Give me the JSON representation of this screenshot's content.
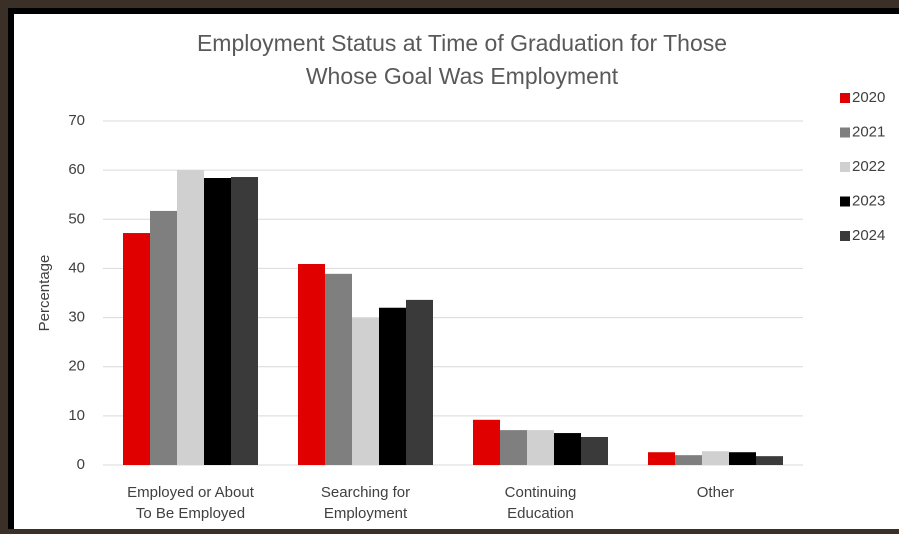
{
  "chart_data": {
    "type": "bar",
    "title": [
      "Employment Status at Time of Graduation for Those",
      "Whose Goal Was Employment"
    ],
    "y_label": "Percentage",
    "categories": [
      [
        "Employed or About",
        "To Be Employed"
      ],
      [
        "Searching for",
        "Employment"
      ],
      [
        "Continuing",
        "Education"
      ],
      [
        "Other"
      ]
    ],
    "series": [
      {
        "name": "2020",
        "color": "#e00000",
        "values": [
          47.2,
          40.9,
          9.2,
          2.6
        ]
      },
      {
        "name": "2021",
        "color": "#7f7f7f",
        "values": [
          51.7,
          38.9,
          7.1,
          2.0
        ]
      },
      {
        "name": "2022",
        "color": "#d0d0d0",
        "values": [
          60,
          29.9,
          7.1,
          2.8
        ]
      },
      {
        "name": "2023",
        "color": "#000000",
        "values": [
          58.4,
          32,
          6.5,
          2.6
        ]
      },
      {
        "name": "2024",
        "color": "#3a3a3a",
        "values": [
          58.6,
          33.6,
          5.7,
          1.8
        ]
      }
    ],
    "ylim": [
      0,
      70
    ],
    "yticks": [
      0,
      10,
      20,
      30,
      40,
      50,
      60,
      70
    ],
    "grid": true,
    "legend": "right"
  }
}
